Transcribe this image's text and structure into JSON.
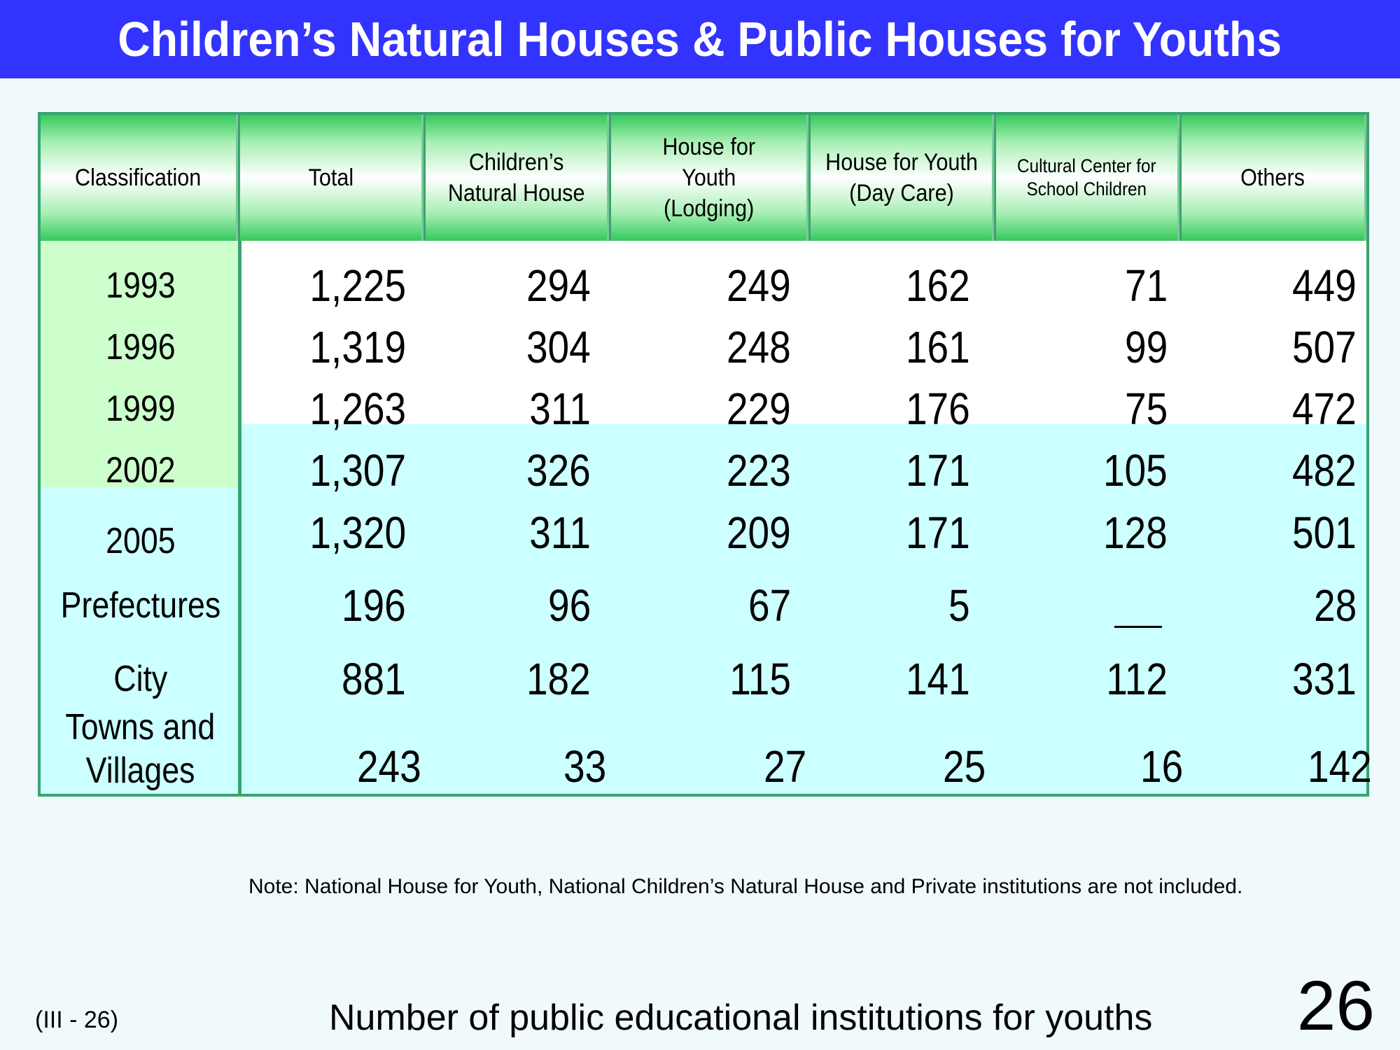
{
  "title": "Children’s Natural Houses & Public Houses for Youths",
  "table": {
    "headers": [
      [
        "Classification"
      ],
      [
        "Total"
      ],
      [
        "Children’s",
        "Natural House"
      ],
      [
        "House for",
        "Youth",
        "(Lodging)"
      ],
      [
        "House for Youth",
        "(Day Care)"
      ],
      [
        "Cultural Center for",
        "School Children"
      ],
      [
        "Others"
      ]
    ],
    "rows": [
      {
        "label": [
          "1993"
        ],
        "values": [
          "1,225",
          "294",
          "249",
          "162",
          "71",
          "449"
        ]
      },
      {
        "label": [
          "1996"
        ],
        "values": [
          "1,319",
          "304",
          "248",
          "161",
          "99",
          "507"
        ]
      },
      {
        "label": [
          "1999"
        ],
        "values": [
          "1,263",
          "311",
          "229",
          "176",
          "75",
          "472"
        ]
      },
      {
        "label": [
          "2002"
        ],
        "values": [
          "1,307",
          "326",
          "223",
          "171",
          "105",
          "482"
        ]
      },
      {
        "label": [
          "2005"
        ],
        "values": [
          "1,320",
          "311",
          "209",
          "171",
          "128",
          "501"
        ]
      },
      {
        "label": [
          "Prefectures"
        ],
        "values": [
          "196",
          "96",
          "67",
          "5",
          "",
          "28"
        ]
      },
      {
        "label": [
          "City"
        ],
        "values": [
          "881",
          "182",
          "115",
          "141",
          "112",
          "331"
        ]
      },
      {
        "label": [
          "Towns and",
          "Villages"
        ],
        "values": [
          "243",
          "33",
          "27",
          "25",
          "16",
          "142"
        ]
      }
    ]
  },
  "note": "Note: National House for Youth, National Children’s Natural House and Private institutions are not included.",
  "footer": {
    "code": "(III - 26)",
    "caption": "Number of public educational institutions for youths",
    "page_number": "26"
  },
  "colors": {
    "title_bar": "#3333ff",
    "table_border": "#3aa371",
    "year_cell": "#ccffcc",
    "cyan_cell": "#ccffff",
    "header_green": "#35c95c"
  }
}
